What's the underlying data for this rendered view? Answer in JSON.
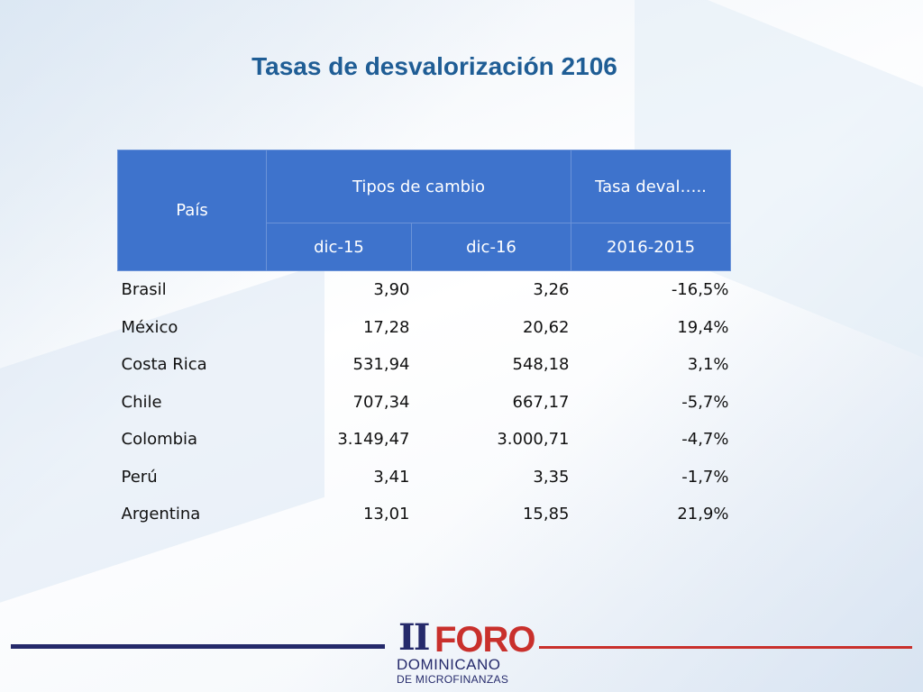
{
  "title": "Tasas de desvalorización 2106",
  "table": {
    "header_country": "País",
    "header_rates": "Tipos de cambio",
    "header_tasa": "Tasa deval…..",
    "sub_dic15": "dic-15",
    "sub_dic16": "dic-16",
    "sub_period": "2016-2015",
    "rows": [
      {
        "country": "Brasil",
        "dic15": "3,90",
        "dic16": "3,26",
        "tasa": "-16,5%"
      },
      {
        "country": "México",
        "dic15": "17,28",
        "dic16": "20,62",
        "tasa": "19,4%"
      },
      {
        "country": "Costa Rica",
        "dic15": "531,94",
        "dic16": "548,18",
        "tasa": "3,1%"
      },
      {
        "country": "Chile",
        "dic15": "707,34",
        "dic16": "667,17",
        "tasa": "-5,7%"
      },
      {
        "country": "Colombia",
        "dic15": "3.149,47",
        "dic16": "3.000,71",
        "tasa": "-4,7%"
      },
      {
        "country": "Perú",
        "dic15": "3,41",
        "dic16": "3,35",
        "tasa": "-1,7%"
      },
      {
        "country": "Argentina",
        "dic15": "13,01",
        "dic16": "15,85",
        "tasa": "21,9%"
      }
    ]
  },
  "logo": {
    "numeral": "II",
    "word": "FORO",
    "line1": "DOMINICANO",
    "line2": "DE MICROFINANZAS"
  },
  "colors": {
    "title": "#1f5d95",
    "header_bg": "#3e73cc",
    "navy": "#252a6b",
    "red": "#c9302c"
  }
}
